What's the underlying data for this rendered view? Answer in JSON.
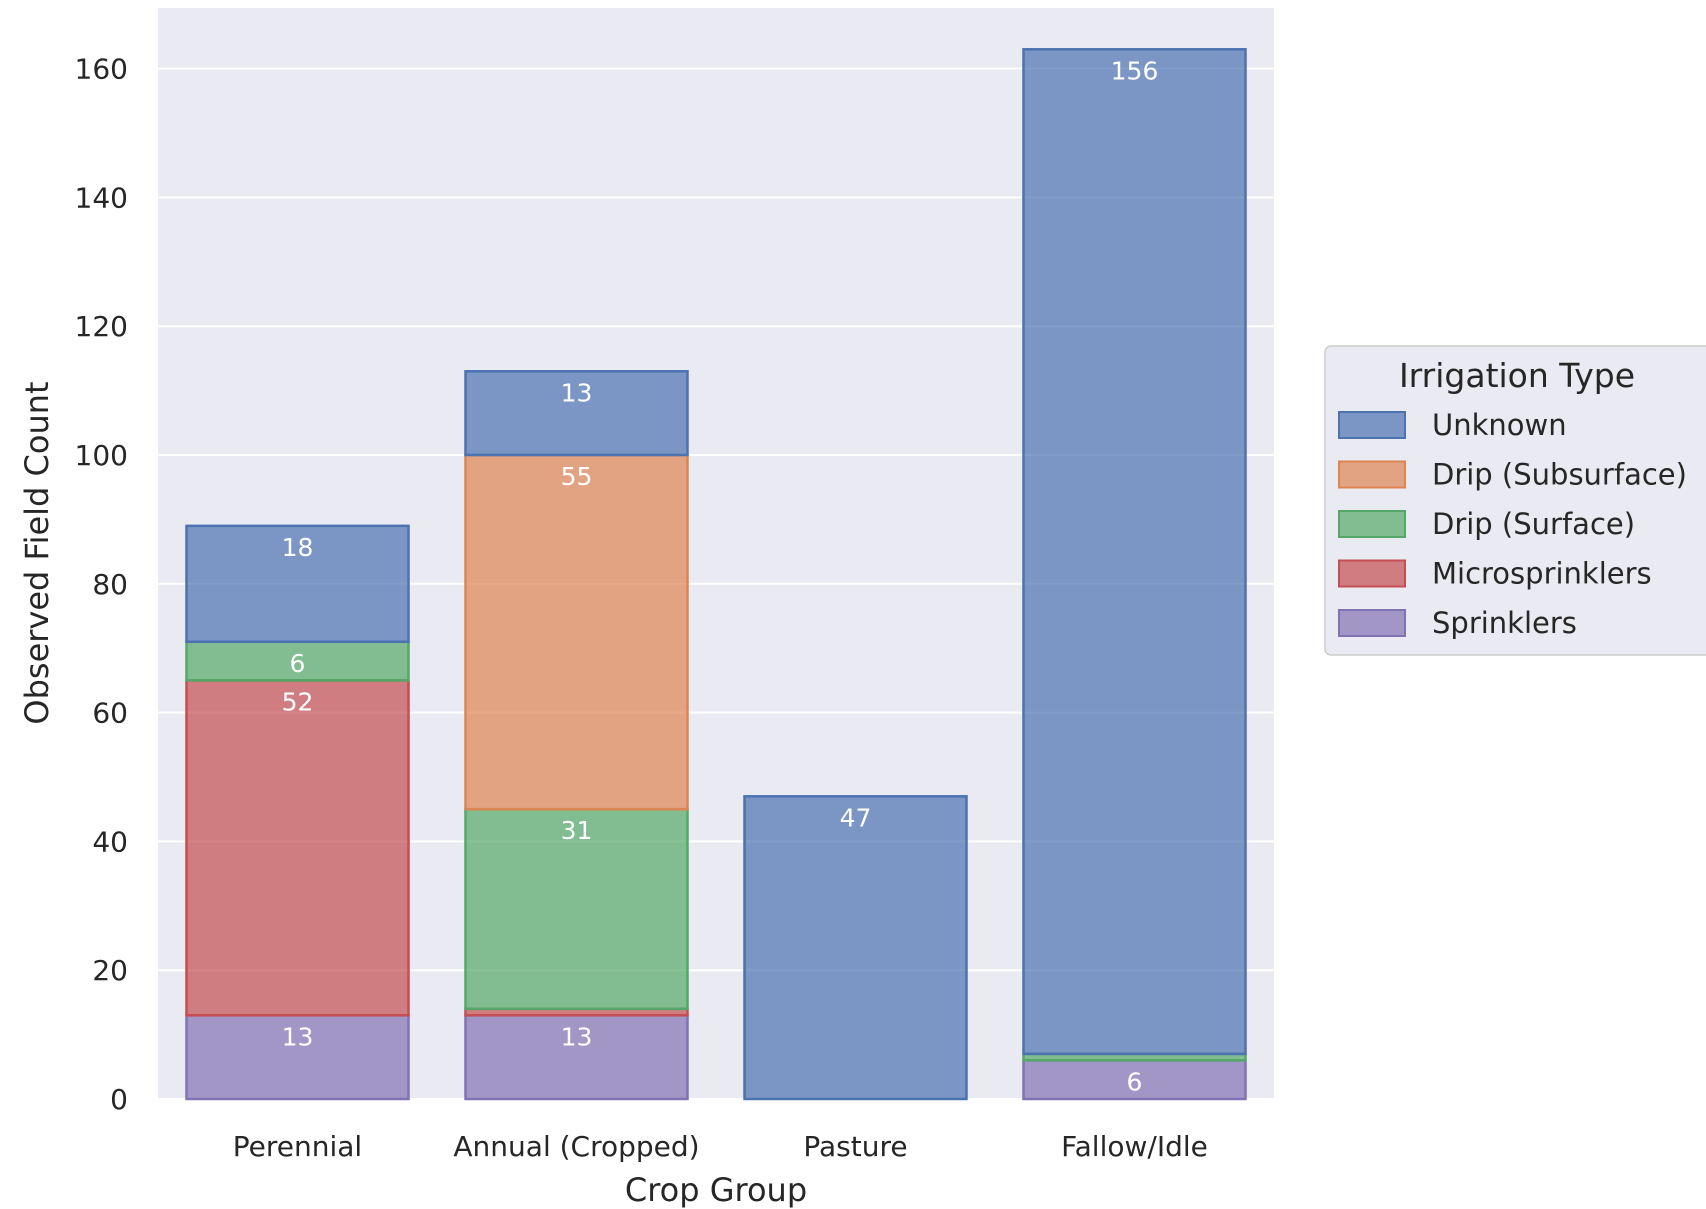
{
  "chart_data": {
    "type": "bar",
    "stacked": true,
    "title": "",
    "xlabel": "Crop Group",
    "ylabel": "Observed Field Count",
    "ylim": [
      0,
      170
    ],
    "yticks": [
      0,
      20,
      40,
      60,
      80,
      100,
      120,
      140,
      160
    ],
    "grid": true,
    "categories": [
      "Perennial",
      "Annual (Cropped)",
      "Pasture",
      "Fallow/Idle"
    ],
    "stack_order": [
      "Sprinklers",
      "Microsprinklers",
      "Drip (Surface)",
      "Drip (Subsurface)",
      "Unknown"
    ],
    "series": [
      {
        "name": "Unknown",
        "color": "#4c72b0",
        "values": [
          18,
          13,
          47,
          156
        ],
        "labels": [
          "18",
          "13",
          "47",
          "156"
        ]
      },
      {
        "name": "Drip (Subsurface)",
        "color": "#dd8452",
        "values": [
          0,
          55,
          0,
          0
        ],
        "labels": [
          "",
          "55",
          "",
          ""
        ]
      },
      {
        "name": "Drip (Surface)",
        "color": "#55a868",
        "values": [
          6,
          31,
          0,
          1
        ],
        "labels": [
          "6",
          "31",
          "",
          ""
        ]
      },
      {
        "name": "Microsprinklers",
        "color": "#c44e52",
        "values": [
          52,
          1,
          0,
          0
        ],
        "labels": [
          "52",
          "",
          "",
          ""
        ]
      },
      {
        "name": "Sprinklers",
        "color": "#8172b3",
        "values": [
          13,
          13,
          0,
          6
        ],
        "labels": [
          "13",
          "13",
          "",
          "6"
        ]
      }
    ],
    "legend": {
      "title": "Irrigation Type",
      "position": "right",
      "entries": [
        "Unknown",
        "Drip (Subsurface)",
        "Drip (Surface)",
        "Microsprinklers",
        "Sprinklers"
      ]
    },
    "background_color": "#eaeaf2",
    "grid_color": "#ffffff"
  }
}
